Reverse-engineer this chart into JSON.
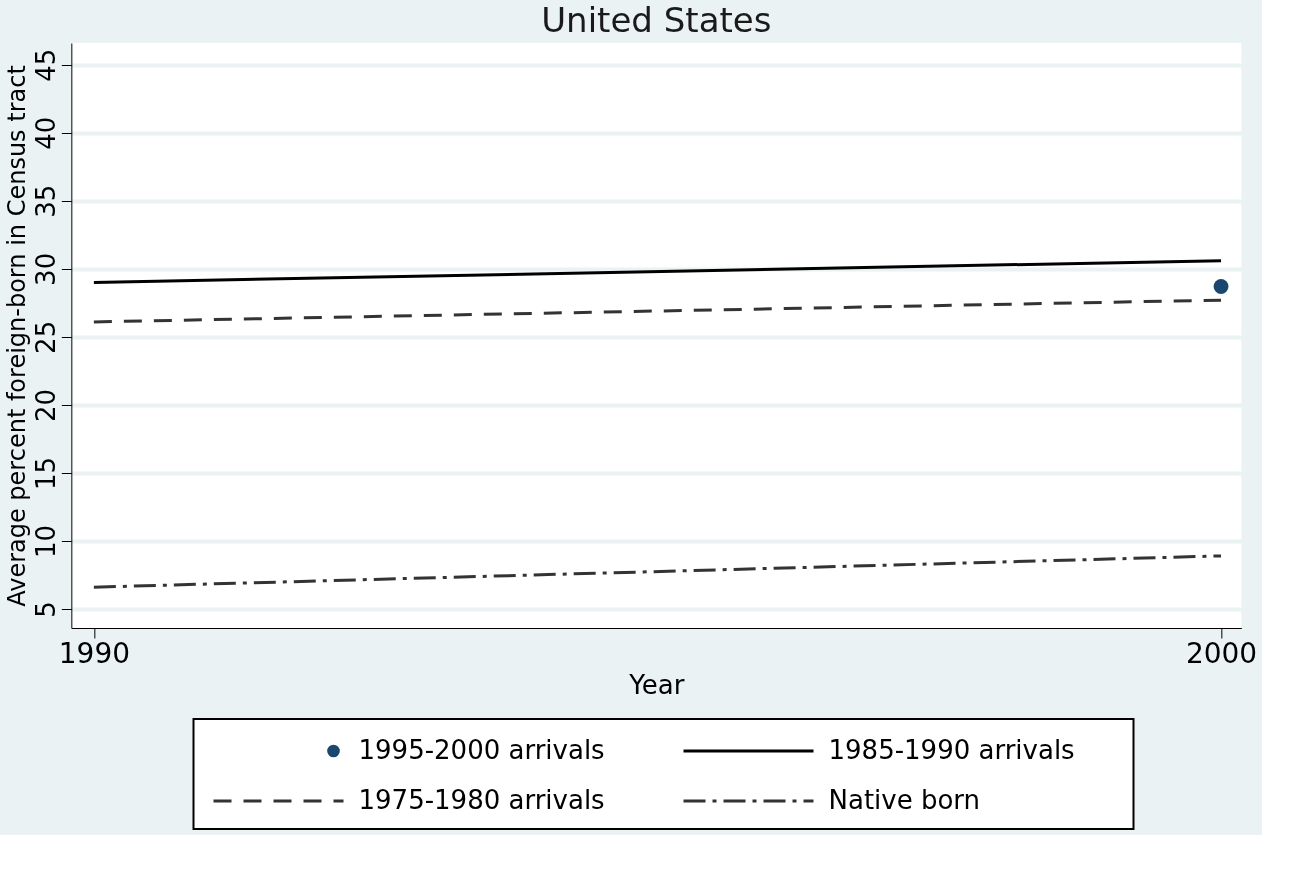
{
  "chart_data": {
    "type": "line",
    "title": "United States",
    "xlabel": "Year",
    "ylabel": "Average percent foreign-born in Census tract",
    "x": [
      1990,
      2000
    ],
    "xlim": [
      1989.8,
      2000.18
    ],
    "xticks": [
      1990,
      2000
    ],
    "ylim": [
      3.6,
      46.6
    ],
    "yticks": [
      5,
      10,
      15,
      20,
      25,
      30,
      35,
      40,
      45
    ],
    "grid": "y",
    "legend": "bottom",
    "series": [
      {
        "name": "1995-2000 arrivals",
        "type": "scatter",
        "marker": "circle",
        "color": "#1a476f",
        "x": [
          2000
        ],
        "values": [
          28.7
        ]
      },
      {
        "name": "1985-1990 arrivals",
        "line_style": "solid",
        "color": "#000000",
        "values": [
          29.0,
          30.6
        ]
      },
      {
        "name": "1975-1980 arrivals",
        "line_style": "dashed",
        "color": "#333333",
        "values": [
          26.1,
          27.7
        ]
      },
      {
        "name": "Native born",
        "line_style": "dashdot",
        "color": "#333333",
        "values": [
          6.6,
          8.9
        ]
      }
    ]
  }
}
